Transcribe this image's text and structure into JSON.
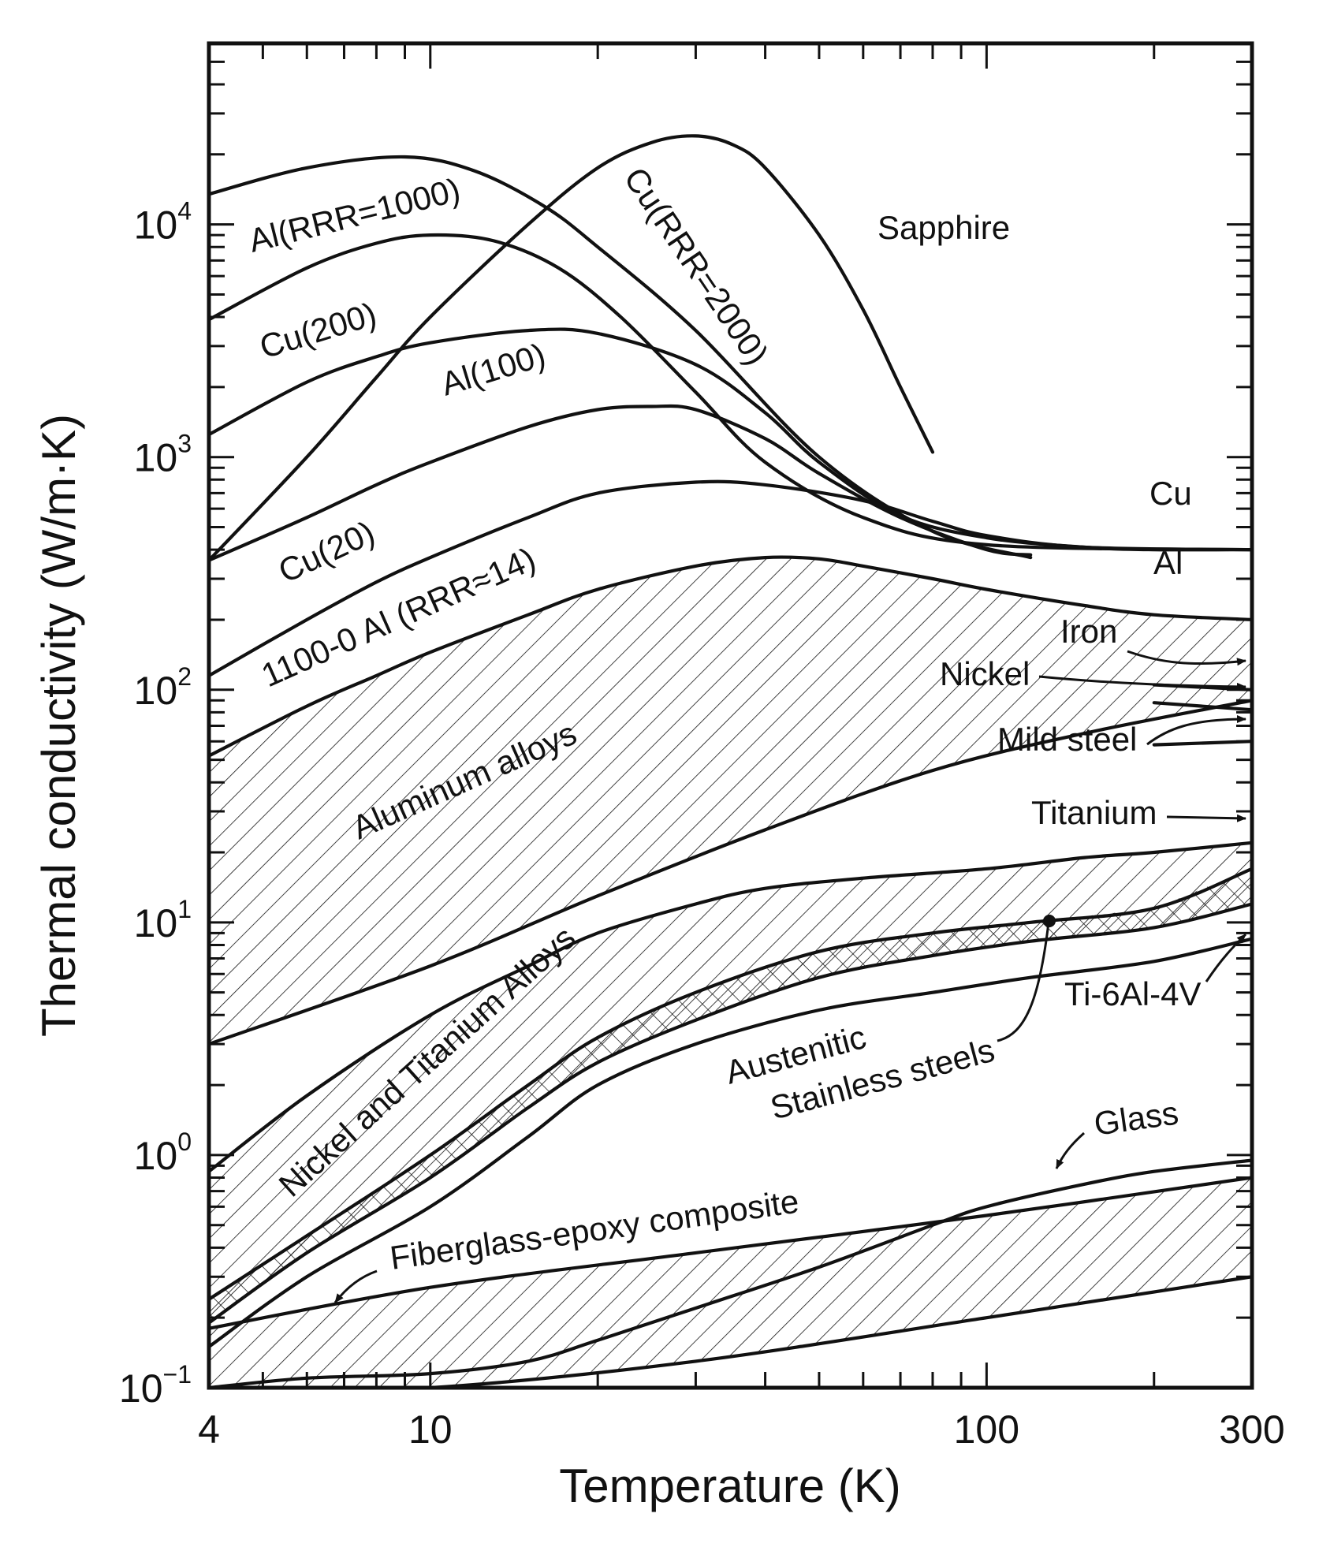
{
  "chart_data": {
    "type": "line",
    "title": "",
    "xlabel": "Temperature (K)",
    "ylabel": "Thermal conductivity (W/m·K)",
    "xscale": "log",
    "yscale": "log",
    "xlim": [
      4,
      300
    ],
    "ylim": [
      0.1,
      60000
    ],
    "xticklabels": [
      {
        "value": 4,
        "label": "4"
      },
      {
        "value": 10,
        "label": "10"
      },
      {
        "value": 100,
        "label": "100"
      },
      {
        "value": 300,
        "label": "300"
      }
    ],
    "yticklabels": [
      {
        "value": 0.1,
        "base": "10",
        "exp": "−1"
      },
      {
        "value": 1,
        "base": "10",
        "exp": "0"
      },
      {
        "value": 10,
        "base": "10",
        "exp": "1"
      },
      {
        "value": 100,
        "base": "10",
        "exp": "2"
      },
      {
        "value": 1000,
        "base": "10",
        "exp": "3"
      },
      {
        "value": 10000,
        "base": "10",
        "exp": "4"
      }
    ],
    "series": [
      {
        "name": "Al(RRR=1000)",
        "x": [
          4,
          6,
          9,
          12,
          16,
          20,
          30,
          50,
          80,
          120
        ],
        "y": [
          13500,
          17500,
          19500,
          17000,
          12000,
          8000,
          3500,
          1000,
          480,
          370
        ]
      },
      {
        "name": "Cu(RRR=2000)",
        "x": [
          4,
          6,
          8,
          10,
          13,
          17,
          22,
          30,
          40,
          60,
          100,
          300
        ],
        "y": [
          3900,
          6500,
          8300,
          9000,
          8500,
          6500,
          4000,
          1900,
          950,
          550,
          420,
          400
        ]
      },
      {
        "name": "Sapphire",
        "x": [
          4,
          6,
          8,
          10,
          15,
          20,
          25,
          30,
          35,
          40,
          50,
          60,
          70,
          80
        ],
        "y": [
          360,
          1000,
          2200,
          4000,
          10000,
          17500,
          22500,
          24000,
          22000,
          17500,
          9000,
          4300,
          2000,
          1050
        ]
      },
      {
        "name": "Cu(200)",
        "x": [
          4,
          6,
          8,
          10,
          15,
          20,
          30,
          40,
          50,
          70,
          100,
          150,
          200,
          300
        ],
        "y": [
          1250,
          2100,
          2700,
          3100,
          3500,
          3400,
          2500,
          1550,
          950,
          560,
          450,
          410,
          400,
          400
        ]
      },
      {
        "name": "Al(100)",
        "x": [
          4,
          6,
          8,
          10,
          15,
          20,
          25,
          30,
          40,
          50,
          70,
          100,
          120
        ],
        "y": [
          360,
          550,
          760,
          950,
          1350,
          1600,
          1650,
          1600,
          1200,
          850,
          550,
          400,
          380
        ]
      },
      {
        "name": "Cu(20)",
        "x": [
          4,
          6,
          8,
          10,
          15,
          20,
          30,
          40,
          60,
          80,
          100,
          150,
          300
        ],
        "y": [
          115,
          200,
          290,
          370,
          550,
          700,
          780,
          760,
          650,
          530,
          460,
          410,
          400
        ]
      },
      {
        "name": "1100-0 Al (RRR≈14)",
        "x": [
          4,
          6,
          8,
          10,
          15,
          20,
          30,
          40,
          50,
          60,
          80,
          100,
          150,
          200,
          300
        ],
        "y": [
          52,
          85,
          115,
          145,
          210,
          270,
          340,
          370,
          365,
          340,
          300,
          270,
          230,
          210,
          200
        ]
      },
      {
        "name": "Aluminum alloys (lower bound)",
        "x": [
          4,
          10,
          20,
          40,
          80,
          150,
          300
        ],
        "y": [
          3,
          6.5,
          13,
          25,
          45,
          65,
          90
        ]
      },
      {
        "name": "Iron",
        "x": [
          200,
          300
        ],
        "y": [
          105,
          100
        ]
      },
      {
        "name": "Nickel",
        "x": [
          200,
          300
        ],
        "y": [
          88,
          82
        ]
      },
      {
        "name": "Mild steel",
        "x": [
          200,
          300
        ],
        "y": [
          58,
          60
        ]
      },
      {
        "name": "Titanium (Nickel and Titanium Alloys upper bound)",
        "x": [
          4,
          6,
          10,
          15,
          20,
          30,
          40,
          60,
          100,
          150,
          200,
          300
        ],
        "y": [
          0.85,
          1.8,
          4,
          6.5,
          9,
          12,
          14,
          15.5,
          17,
          19,
          20,
          22
        ]
      },
      {
        "name": "Austenitic Stainless steels (upper)",
        "x": [
          4,
          6,
          10,
          15,
          20,
          30,
          50,
          80,
          120,
          200,
          300
        ],
        "y": [
          0.24,
          0.45,
          1,
          2,
          3.2,
          5,
          7.5,
          9,
          10,
          11.5,
          17
        ]
      },
      {
        "name": "Austenitic Stainless steels (lower) / Nickel and Titanium Alloys lower bound",
        "x": [
          4,
          6,
          10,
          15,
          20,
          30,
          50,
          80,
          120,
          200,
          300
        ],
        "y": [
          0.19,
          0.38,
          0.8,
          1.6,
          2.5,
          3.8,
          5.8,
          7.2,
          8.3,
          9.5,
          12
        ]
      },
      {
        "name": "Ti-6Al-4V",
        "x": [
          4,
          6,
          10,
          15,
          20,
          30,
          50,
          80,
          120,
          200,
          300
        ],
        "y": [
          0.15,
          0.3,
          0.6,
          1.2,
          2,
          3,
          4.2,
          5,
          5.8,
          6.8,
          8.5
        ]
      },
      {
        "name": "Fiberglass-epoxy composite (upper)",
        "x": [
          4,
          10,
          30,
          100,
          300
        ],
        "y": [
          0.18,
          0.27,
          0.38,
          0.55,
          0.8
        ]
      },
      {
        "name": "Fiberglass-epoxy composite (lower)",
        "x": [
          4,
          10,
          30,
          100,
          300
        ],
        "y": [
          0.095,
          0.1,
          0.13,
          0.2,
          0.3
        ]
      },
      {
        "name": "Glass",
        "x": [
          4,
          6,
          10,
          15,
          20,
          30,
          50,
          80,
          100,
          150,
          200,
          300
        ],
        "y": [
          0.1,
          0.11,
          0.115,
          0.13,
          0.16,
          0.22,
          0.33,
          0.5,
          0.6,
          0.75,
          0.85,
          0.95
        ]
      }
    ],
    "labels": {
      "al1000": "Al(RRR=1000)",
      "cu2000": "Cu(RRR=2000)",
      "sapphire": "Sapphire",
      "cu200": "Cu(200)",
      "al100": "Al(100)",
      "cu20": "Cu(20)",
      "al1100": "1100-0 Al (RRR≈14)",
      "cu": "Cu",
      "al": "Al",
      "iron": "Iron",
      "nickel": "Nickel",
      "mildSteel": "Mild steel",
      "aluminumAlloys": "Aluminum alloys",
      "titanium": "Titanium",
      "nickelTitanium": "Nickel and Titanium Alloys",
      "austenitic1": "Austenitic",
      "austenitic2": "Stainless steels",
      "ti6al4v": "Ti-6Al-4V",
      "glass": "Glass",
      "fiberglass": "Fiberglass-epoxy composite"
    }
  }
}
